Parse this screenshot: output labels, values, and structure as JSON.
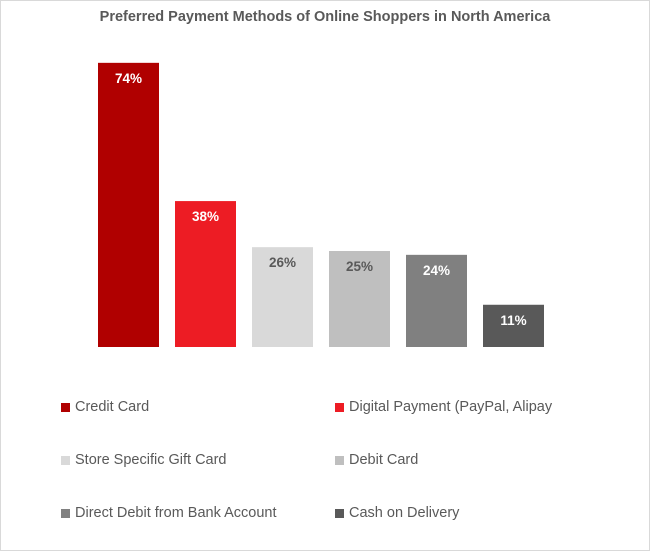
{
  "chart_data": {
    "type": "bar",
    "title": "Preferred Payment Methods of Online Shoppers in North America",
    "xlabel": "",
    "ylabel": "",
    "ylim": [
      0,
      80
    ],
    "grid": false,
    "legend_position": "bottom",
    "categories": [
      "Credit Card",
      "Digital Payment (PayPal, Alipay",
      "Store Specific Gift Card",
      "Debit Card",
      "Direct Debit from Bank Account",
      "Cash on Delivery"
    ],
    "values": [
      74,
      38,
      26,
      25,
      24,
      11
    ],
    "data_labels": [
      "74%",
      "38%",
      "26%",
      "25%",
      "24%",
      "11%"
    ],
    "colors": [
      "#b00000",
      "#ed1c24",
      "#d9d9d9",
      "#bfbfbf",
      "#808080",
      "#595959"
    ],
    "label_colors": [
      "#ffffff",
      "#ffffff",
      "#595959",
      "#595959",
      "#ffffff",
      "#ffffff"
    ]
  }
}
